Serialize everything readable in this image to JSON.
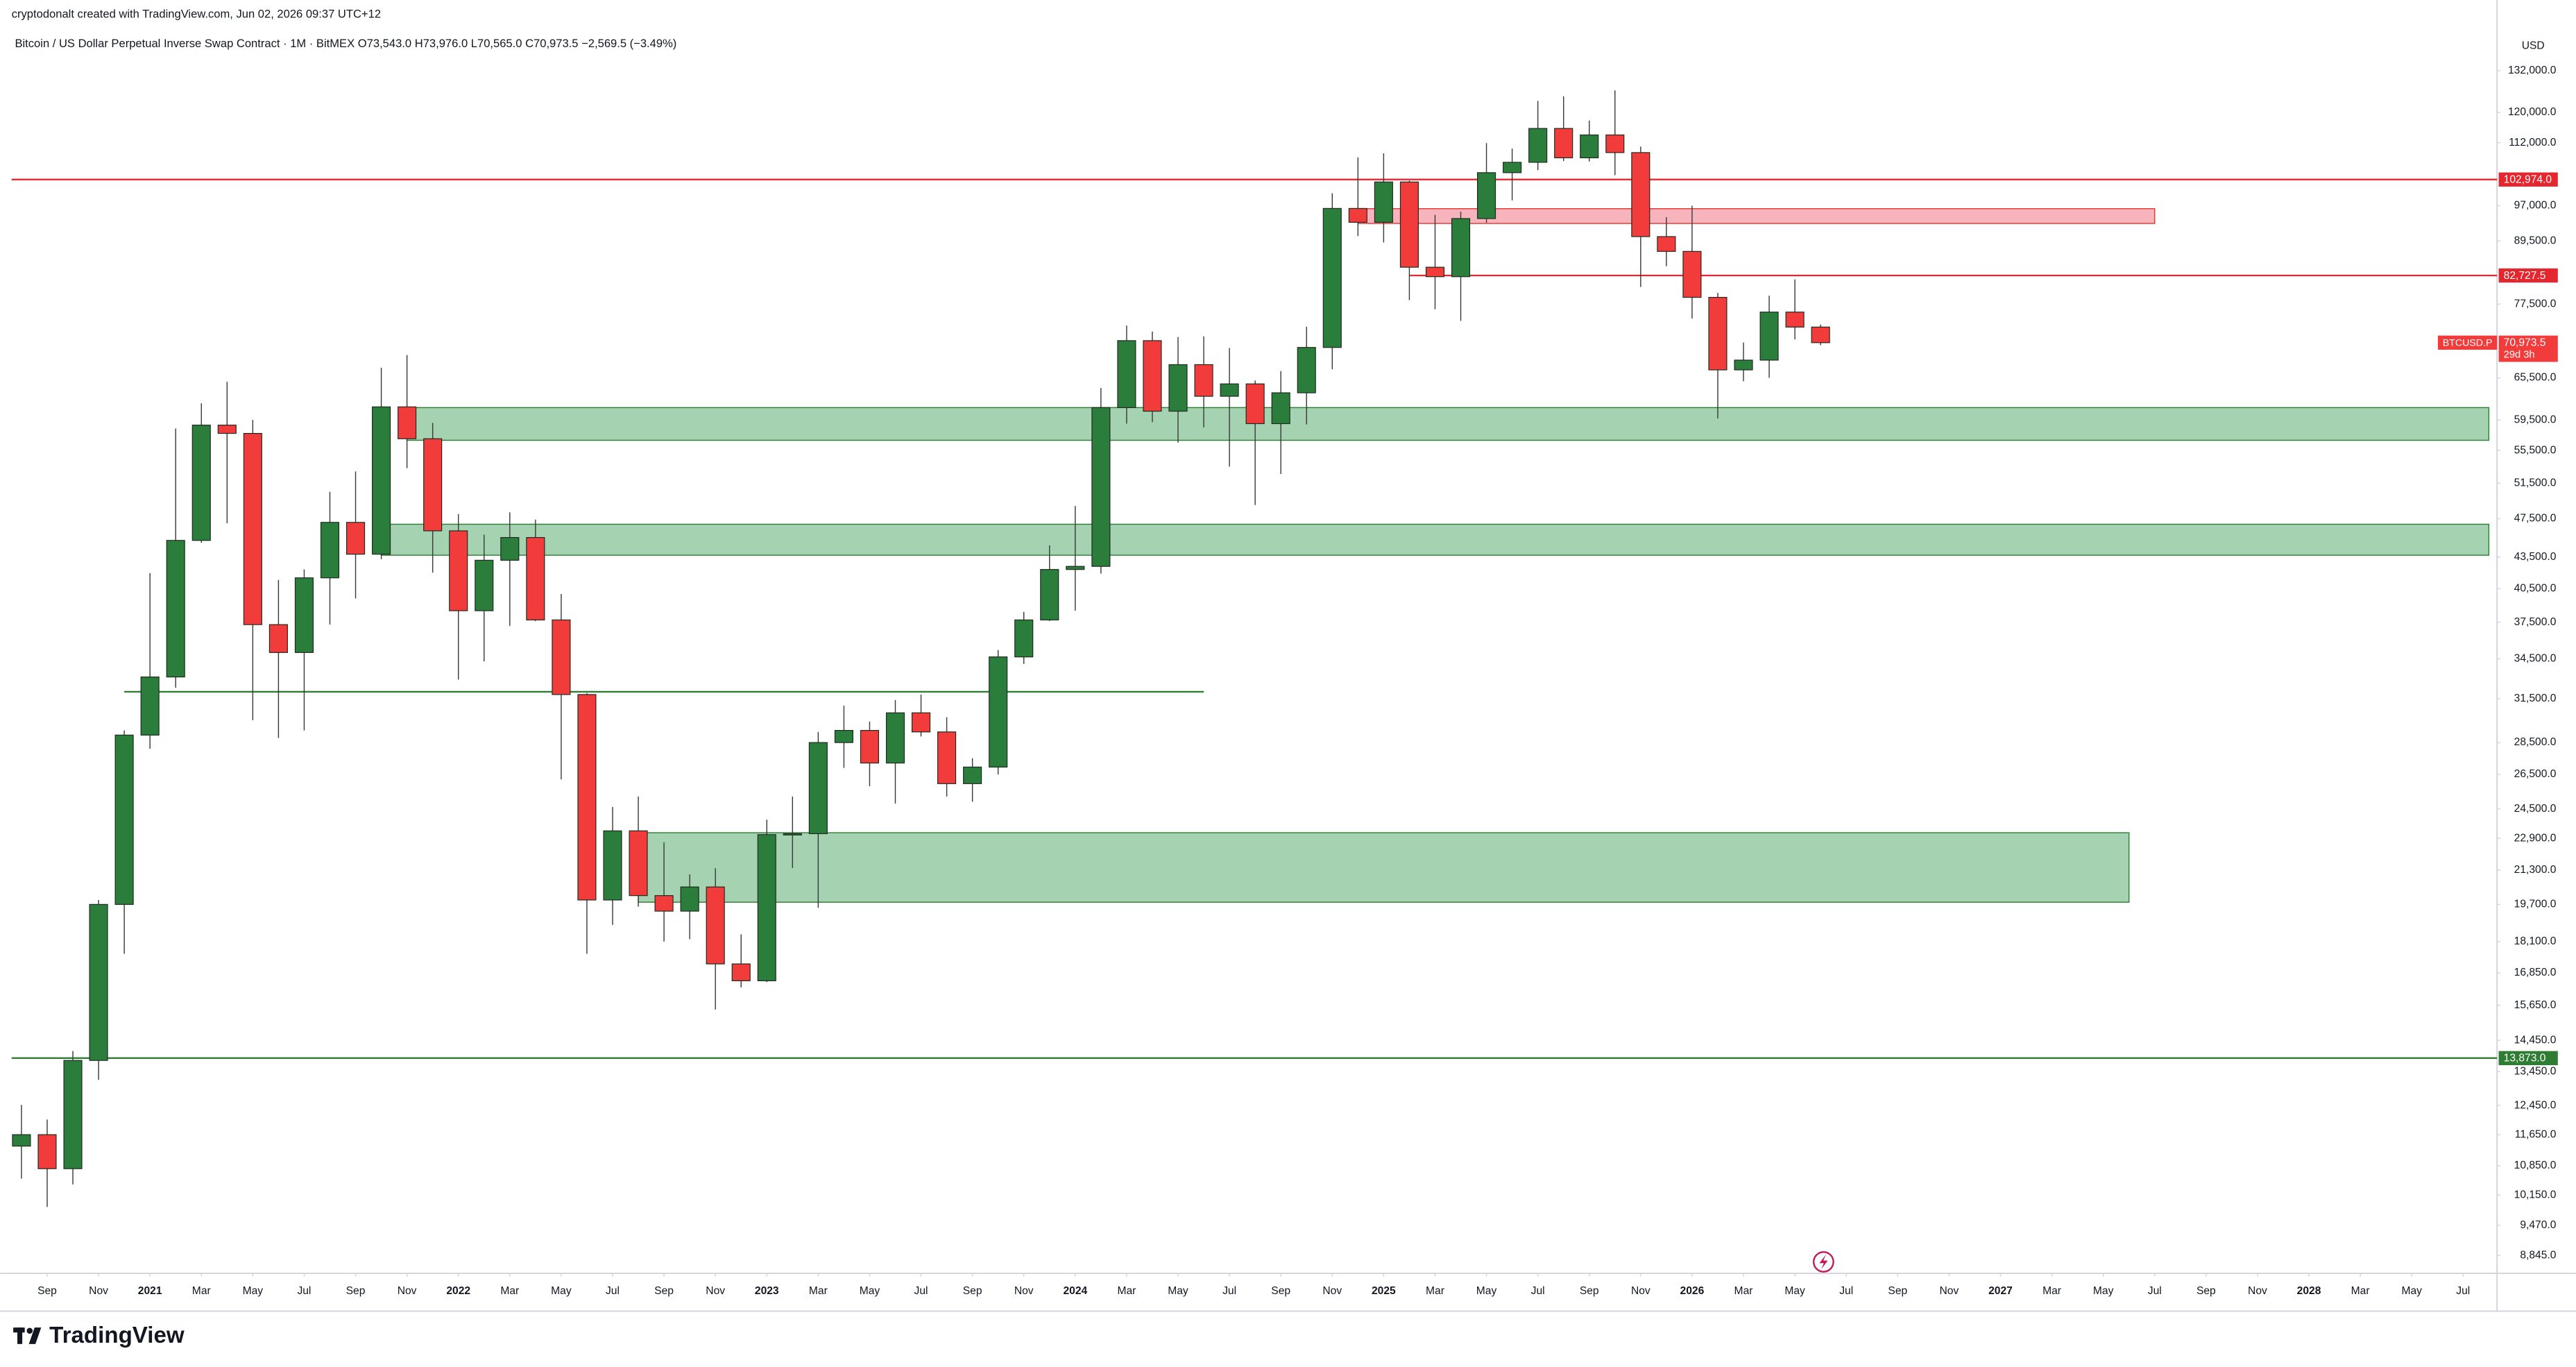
{
  "chart_data": {
    "type": "candlestick",
    "caption": "cryptodonalt created with TradingView.com, Jun 02, 2026 09:37 UTC+12",
    "title": "Bitcoin / US Dollar Perpetual Inverse Swap Contract · 1M · BitMEX",
    "ohlc_legend": [
      "O73,543.0",
      "H73,976.0",
      "L70,565.0",
      "C70,973.5",
      "−2,569.5 (−3.49%)"
    ],
    "y_unit": "USD",
    "brand": "TradingView",
    "log_scale": true,
    "grid": false,
    "up_color": "#2a7d3b",
    "down_color": "#f23b3b",
    "x": [
      "2020-08",
      "2020-09",
      "2020-10",
      "2020-11",
      "2020-12",
      "2021-01",
      "2021-02",
      "2021-03",
      "2021-04",
      "2021-05",
      "2021-06",
      "2021-07",
      "2021-08",
      "2021-09",
      "2021-10",
      "2021-11",
      "2021-12",
      "2022-01",
      "2022-02",
      "2022-03",
      "2022-04",
      "2022-05",
      "2022-06",
      "2022-07",
      "2022-08",
      "2022-09",
      "2022-10",
      "2022-11",
      "2022-12",
      "2023-01",
      "2023-02",
      "2023-03",
      "2023-04",
      "2023-05",
      "2023-06",
      "2023-07",
      "2023-08",
      "2023-09",
      "2023-10",
      "2023-11",
      "2023-12",
      "2024-01",
      "2024-02",
      "2024-03",
      "2024-04",
      "2024-05",
      "2024-06",
      "2024-07",
      "2024-08",
      "2024-09",
      "2024-10",
      "2024-11",
      "2024-12",
      "2025-01",
      "2025-02",
      "2025-03",
      "2025-04",
      "2025-05",
      "2025-06",
      "2025-07",
      "2025-08",
      "2025-09",
      "2025-10",
      "2025-11",
      "2025-12",
      "2026-01",
      "2026-02",
      "2026-03",
      "2026-04",
      "2026-05",
      "2026-06"
    ],
    "open": [
      11350,
      11650,
      10780,
      13800,
      19700,
      28990,
      33100,
      45200,
      58800,
      57700,
      37300,
      35000,
      41500,
      47100,
      43800,
      61300,
      57000,
      46200,
      38500,
      43200,
      45500,
      37700,
      31800,
      19900,
      23300,
      20100,
      19400,
      20500,
      17200,
      16550,
      23100,
      23150,
      28500,
      29300,
      27200,
      30500,
      29200,
      25950,
      26950,
      34650,
      37700,
      42300,
      42600,
      61200,
      71300,
      60700,
      67500,
      62800,
      64600,
      59000,
      63300,
      70200,
      96400,
      93400,
      102400,
      84300,
      82500,
      94200,
      104600,
      107100,
      115700,
      108200,
      114000,
      109500,
      90400,
      87400,
      78700,
      66700,
      68200,
      76100,
      73543
    ],
    "high": [
      12470,
      12060,
      14100,
      19900,
      29300,
      41950,
      58350,
      61800,
      64900,
      59500,
      41300,
      42300,
      50500,
      52900,
      67000,
      69000,
      59100,
      48000,
      45800,
      48200,
      47400,
      40000,
      31900,
      24600,
      25200,
      22700,
      21100,
      21400,
      18400,
      23900,
      25200,
      29200,
      31000,
      29900,
      31400,
      31800,
      30200,
      27500,
      35200,
      38400,
      44700,
      48900,
      64000,
      73800,
      72800,
      71900,
      72000,
      70100,
      65100,
      66500,
      73600,
      99800,
      108300,
      109300,
      102700,
      95000,
      95700,
      111900,
      110500,
      123200,
      124500,
      117800,
      126200,
      111000,
      94500,
      97000,
      79500,
      71000,
      79000,
      82000,
      73976
    ],
    "low": [
      10540,
      9880,
      10400,
      13200,
      17600,
      28100,
      32300,
      44950,
      47000,
      30000,
      28800,
      29300,
      37300,
      39600,
      43300,
      53300,
      42000,
      32900,
      34300,
      37200,
      37600,
      26200,
      17600,
      18800,
      19600,
      18100,
      18200,
      15500,
      16300,
      16500,
      21400,
      19550,
      26900,
      25800,
      24800,
      28900,
      25200,
      24900,
      26500,
      34100,
      37600,
      38500,
      41900,
      59000,
      59200,
      56500,
      58500,
      53500,
      49000,
      52600,
      58900,
      66800,
      90500,
      89200,
      78200,
      76600,
      74600,
      93300,
      98200,
      105200,
      107400,
      107300,
      104000,
      80600,
      84500,
      75000,
      59700,
      65000,
      65500,
      71500,
      70565
    ],
    "close": [
      11650,
      10780,
      13800,
      19700,
      28990,
      33100,
      45200,
      58800,
      57700,
      37300,
      35000,
      41500,
      47100,
      43800,
      61300,
      57000,
      46200,
      38500,
      43200,
      45500,
      37700,
      31800,
      19900,
      23300,
      20100,
      19400,
      20500,
      17200,
      16550,
      23100,
      23150,
      28500,
      29300,
      27200,
      30500,
      29200,
      25950,
      26950,
      34650,
      37700,
      42300,
      42600,
      61200,
      71300,
      60700,
      67500,
      62800,
      64600,
      59000,
      63300,
      70200,
      96400,
      93400,
      102400,
      84300,
      82500,
      94200,
      104600,
      107100,
      115700,
      108200,
      114000,
      109500,
      90400,
      87400,
      78700,
      66700,
      68200,
      76100,
      73543,
      70973.5
    ],
    "xlim": [
      "2020-08",
      "2028-08"
    ],
    "ylim": [
      8490,
      155100
    ],
    "xticks": [
      {
        "value": "2020-09",
        "label": "Sep"
      },
      {
        "value": "2020-11",
        "label": "Nov"
      },
      {
        "value": "2021-01",
        "label": "2021"
      },
      {
        "value": "2021-03",
        "label": "Mar"
      },
      {
        "value": "2021-05",
        "label": "May"
      },
      {
        "value": "2021-07",
        "label": "Jul"
      },
      {
        "value": "2021-09",
        "label": "Sep"
      },
      {
        "value": "2021-11",
        "label": "Nov"
      },
      {
        "value": "2022-01",
        "label": "2022"
      },
      {
        "value": "2022-03",
        "label": "Mar"
      },
      {
        "value": "2022-05",
        "label": "May"
      },
      {
        "value": "2022-07",
        "label": "Jul"
      },
      {
        "value": "2022-09",
        "label": "Sep"
      },
      {
        "value": "2022-11",
        "label": "Nov"
      },
      {
        "value": "2023-01",
        "label": "2023"
      },
      {
        "value": "2023-03",
        "label": "Mar"
      },
      {
        "value": "2023-05",
        "label": "May"
      },
      {
        "value": "2023-07",
        "label": "Jul"
      },
      {
        "value": "2023-09",
        "label": "Sep"
      },
      {
        "value": "2023-11",
        "label": "Nov"
      },
      {
        "value": "2024-01",
        "label": "2024"
      },
      {
        "value": "2024-03",
        "label": "Mar"
      },
      {
        "value": "2024-05",
        "label": "May"
      },
      {
        "value": "2024-07",
        "label": "Jul"
      },
      {
        "value": "2024-09",
        "label": "Sep"
      },
      {
        "value": "2024-11",
        "label": "Nov"
      },
      {
        "value": "2025-01",
        "label": "2025"
      },
      {
        "value": "2025-03",
        "label": "Mar"
      },
      {
        "value": "2025-05",
        "label": "May"
      },
      {
        "value": "2025-07",
        "label": "Jul"
      },
      {
        "value": "2025-09",
        "label": "Sep"
      },
      {
        "value": "2025-11",
        "label": "Nov"
      },
      {
        "value": "2026-01",
        "label": "2026"
      },
      {
        "value": "2026-03",
        "label": "Mar"
      },
      {
        "value": "2026-05",
        "label": "May"
      },
      {
        "value": "2026-07",
        "label": "Jul"
      },
      {
        "value": "2026-09",
        "label": "Sep"
      },
      {
        "value": "2026-11",
        "label": "Nov"
      },
      {
        "value": "2027-01",
        "label": "2027"
      },
      {
        "value": "2027-03",
        "label": "Mar"
      },
      {
        "value": "2027-05",
        "label": "May"
      },
      {
        "value": "2027-07",
        "label": "Jul"
      },
      {
        "value": "2027-09",
        "label": "Sep"
      },
      {
        "value": "2027-11",
        "label": "Nov"
      },
      {
        "value": "2028-01",
        "label": "2028"
      },
      {
        "value": "2028-03",
        "label": "Mar"
      },
      {
        "value": "2028-05",
        "label": "May"
      },
      {
        "value": "2028-07",
        "label": "Jul"
      }
    ],
    "yticks": [
      {
        "value": 132000,
        "label": "132,000.0"
      },
      {
        "value": 120000,
        "label": "120,000.0"
      },
      {
        "value": 112000,
        "label": "112,000.0"
      },
      {
        "value": 97000,
        "label": "97,000.0"
      },
      {
        "value": 89500,
        "label": "89,500.0"
      },
      {
        "value": 77500,
        "label": "77,500.0"
      },
      {
        "value": 65500,
        "label": "65,500.0"
      },
      {
        "value": 59500,
        "label": "59,500.0"
      },
      {
        "value": 55500,
        "label": "55,500.0"
      },
      {
        "value": 51500,
        "label": "51,500.0"
      },
      {
        "value": 47500,
        "label": "47,500.0"
      },
      {
        "value": 43500,
        "label": "43,500.0"
      },
      {
        "value": 40500,
        "label": "40,500.0"
      },
      {
        "value": 37500,
        "label": "37,500.0"
      },
      {
        "value": 34500,
        "label": "34,500.0"
      },
      {
        "value": 31500,
        "label": "31,500.0"
      },
      {
        "value": 28500,
        "label": "28,500.0"
      },
      {
        "value": 26500,
        "label": "26,500.0"
      },
      {
        "value": 24500,
        "label": "24,500.0"
      },
      {
        "value": 22900,
        "label": "22,900.0"
      },
      {
        "value": 21300,
        "label": "21,300.0"
      },
      {
        "value": 19700,
        "label": "19,700.0"
      },
      {
        "value": 18100,
        "label": "18,100.0"
      },
      {
        "value": 16850,
        "label": "16,850.0"
      },
      {
        "value": 15650,
        "label": "15,650.0"
      },
      {
        "value": 14450,
        "label": "14,450.0"
      },
      {
        "value": 13450,
        "label": "13,450.0"
      },
      {
        "value": 12450,
        "label": "12,450.0"
      },
      {
        "value": 11650,
        "label": "11,650.0"
      },
      {
        "value": 10850,
        "label": "10,850.0"
      },
      {
        "value": 10150,
        "label": "10,150.0"
      },
      {
        "value": 9470,
        "label": "9,470.0"
      },
      {
        "value": 8845,
        "label": "8,845.0"
      }
    ],
    "zones": [
      {
        "top": 61200,
        "bottom": 56800,
        "from": "2021-11",
        "to": "2028-08",
        "color": "#a5d3b1",
        "border": "#2e7d32"
      },
      {
        "top": 46900,
        "bottom": 43700,
        "from": "2021-10",
        "to": "2028-08",
        "color": "#a5d3b1",
        "border": "#2e7d32"
      },
      {
        "top": 23200,
        "bottom": 19800,
        "from": "2022-08",
        "to": "2027-06",
        "color": "#a5d3b1",
        "border": "#2e7d32"
      },
      {
        "top": 96350,
        "bottom": 93150,
        "from": "2024-12",
        "to": "2027-07",
        "color": "#f8b4bc",
        "border": "#e53935"
      }
    ],
    "levels": [
      {
        "value": 102974.0,
        "label": "102,974.0",
        "color": "#e5262f"
      },
      {
        "value": 82727.5,
        "label": "82,727.5",
        "color": "#e5262f",
        "from": "2025-02"
      },
      {
        "value": 13873.0,
        "label": "13,873.0",
        "color": "#2e7d32"
      },
      {
        "value": 32000,
        "color": "#2e7d32",
        "from": "2020-12",
        "to": "2024-06"
      }
    ],
    "last_price_label": {
      "symbol": "BTCUSD.P",
      "price": "70,973.5",
      "countdown": "29d 3h",
      "color": "#f23b3b"
    }
  }
}
